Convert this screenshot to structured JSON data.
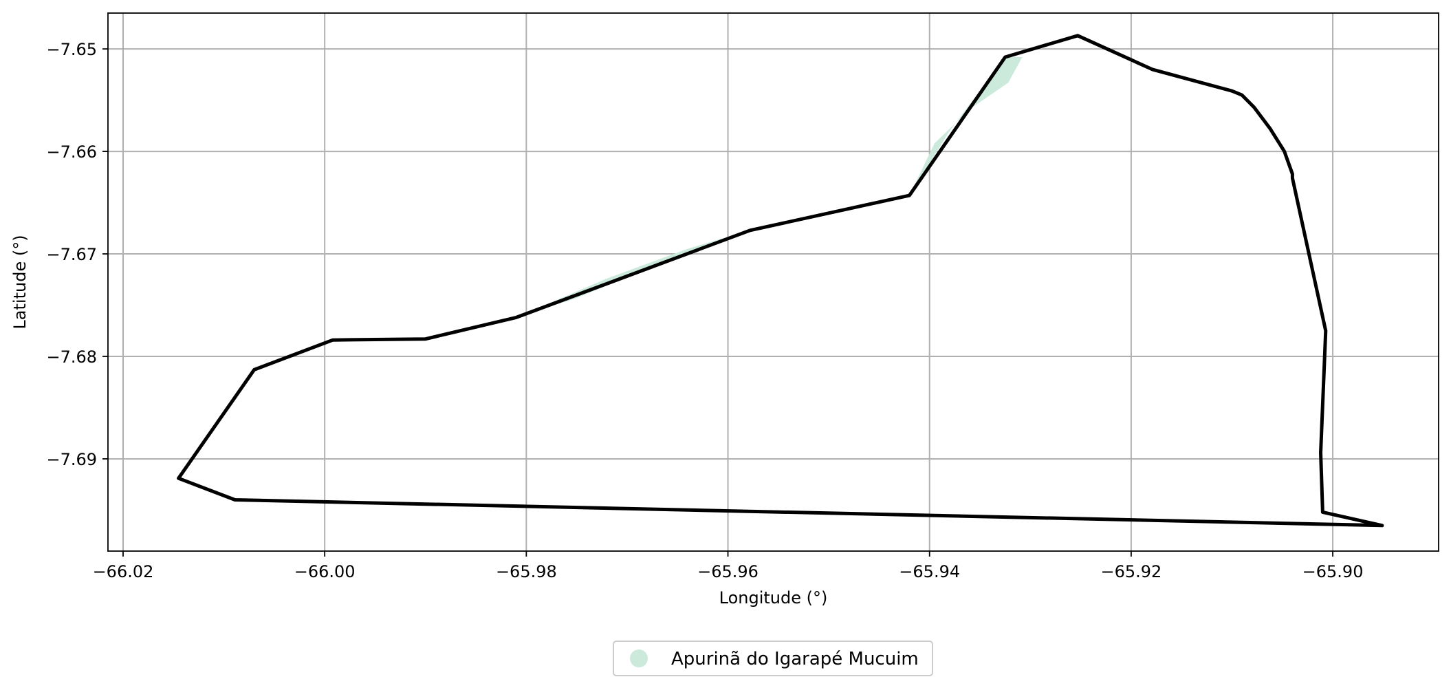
{
  "chart_data": {
    "type": "map",
    "xlabel": "Longitude (°)",
    "ylabel": "Latitude (°)",
    "xlim": [
      -66.0215,
      -65.8895
    ],
    "ylim": [
      -7.699,
      -7.6465
    ],
    "grid": true,
    "x_ticks": [
      {
        "value": -66.02,
        "label": "−66.02"
      },
      {
        "value": -66.0,
        "label": "−66.00"
      },
      {
        "value": -65.98,
        "label": "−65.98"
      },
      {
        "value": -65.96,
        "label": "−65.96"
      },
      {
        "value": -65.94,
        "label": "−65.94"
      },
      {
        "value": -65.92,
        "label": "−65.92"
      },
      {
        "value": -65.9,
        "label": "−65.90"
      }
    ],
    "y_ticks": [
      {
        "value": -7.65,
        "label": "−7.65"
      },
      {
        "value": -7.66,
        "label": "−7.66"
      },
      {
        "value": -7.67,
        "label": "−7.67"
      },
      {
        "value": -7.68,
        "label": "−7.68"
      },
      {
        "value": -7.69,
        "label": "−7.69"
      }
    ],
    "legend": {
      "placement": "bottom-center",
      "entries": [
        {
          "label": "Apurinã do Igarapé Mucuim",
          "color": "#cbeadc"
        }
      ]
    },
    "colors": {
      "fill": "#cbeadc",
      "outline": "#000000",
      "grid": "#b0b0b0"
    },
    "fill_polygon": [
      [
        -65.9308,
        -7.6508
      ],
      [
        -65.9322,
        -7.6533
      ],
      [
        -65.9359,
        -7.6558
      ],
      [
        -65.9395,
        -7.6592
      ],
      [
        -65.942,
        -7.6643
      ],
      [
        -65.951,
        -7.6661
      ],
      [
        -65.958,
        -7.6677
      ],
      [
        -65.96,
        -7.6687
      ],
      [
        -65.967,
        -7.671
      ],
      [
        -65.975,
        -7.6743
      ],
      [
        -65.981,
        -7.6762
      ],
      [
        -65.981,
        -7.6762
      ],
      [
        -65.972,
        -7.6724
      ],
      [
        -65.964,
        -7.6695
      ],
      [
        -65.9578,
        -7.6677
      ],
      [
        -65.949,
        -7.6659
      ],
      [
        -65.942,
        -7.6643
      ],
      [
        -65.938,
        -7.658
      ],
      [
        -65.9325,
        -7.6508
      ],
      [
        -65.9308,
        -7.6508
      ]
    ],
    "boundary": [
      [
        -65.9253,
        -7.6487
      ],
      [
        -65.9179,
        -7.652
      ],
      [
        -65.91,
        -7.6541
      ],
      [
        -65.909,
        -7.6545
      ],
      [
        -65.9078,
        -7.6557
      ],
      [
        -65.9062,
        -7.6578
      ],
      [
        -65.9048,
        -7.66
      ],
      [
        -65.904,
        -7.6622
      ],
      [
        -65.904,
        -7.6626
      ],
      [
        -65.9007,
        -7.6775
      ],
      [
        -65.9012,
        -7.6894
      ],
      [
        -65.901,
        -7.6952
      ],
      [
        -65.8951,
        -7.6965
      ],
      [
        -66.0089,
        -7.694
      ],
      [
        -66.0145,
        -7.6919
      ],
      [
        -66.007,
        -7.6813
      ],
      [
        -65.9992,
        -7.6784
      ],
      [
        -65.99,
        -7.6783
      ],
      [
        -65.981,
        -7.6762
      ],
      [
        -65.9578,
        -7.6677
      ],
      [
        -65.942,
        -7.6643
      ],
      [
        -65.9325,
        -7.6508
      ],
      [
        -65.9253,
        -7.6487
      ]
    ]
  }
}
